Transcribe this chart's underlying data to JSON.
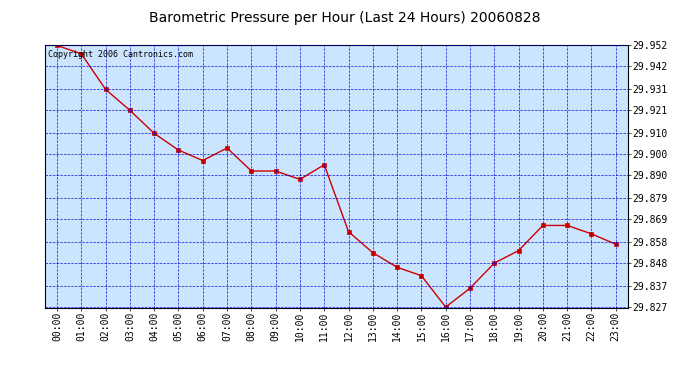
{
  "title": "Barometric Pressure per Hour (Last 24 Hours) 20060828",
  "copyright": "Copyright 2006 Cantronics.com",
  "hours": [
    "00:00",
    "01:00",
    "02:00",
    "03:00",
    "04:00",
    "05:00",
    "06:00",
    "07:00",
    "08:00",
    "09:00",
    "10:00",
    "11:00",
    "12:00",
    "13:00",
    "14:00",
    "15:00",
    "16:00",
    "17:00",
    "18:00",
    "19:00",
    "20:00",
    "21:00",
    "22:00",
    "23:00"
  ],
  "values": [
    29.952,
    29.948,
    29.931,
    29.921,
    29.91,
    29.902,
    29.897,
    29.903,
    29.892,
    29.892,
    29.888,
    29.895,
    29.863,
    29.853,
    29.846,
    29.842,
    29.827,
    29.836,
    29.848,
    29.854,
    29.866,
    29.866,
    29.862,
    29.857
  ],
  "ylim_min": 29.827,
  "ylim_max": 29.952,
  "yticks": [
    29.827,
    29.837,
    29.848,
    29.858,
    29.869,
    29.879,
    29.89,
    29.9,
    29.91,
    29.921,
    29.931,
    29.942,
    29.952
  ],
  "line_color": "#cc0000",
  "marker_color": "#cc0000",
  "plot_bg_color": "#cce5ff",
  "grid_color": "#0000cc",
  "title_color": "#000000",
  "copyright_color": "#000000",
  "title_fontsize": 10,
  "copyright_fontsize": 6,
  "tick_fontsize": 7,
  "ytick_fontsize": 7
}
